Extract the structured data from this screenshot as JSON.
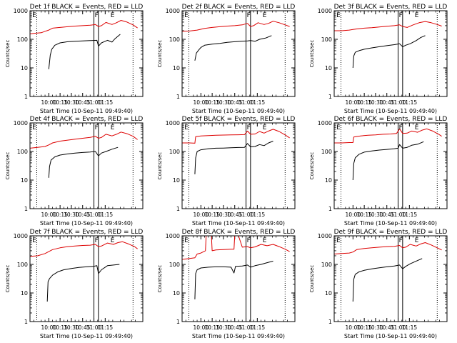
{
  "chart_data": [
    {
      "type": "line",
      "title": "Det 1f BLACK = Events, RED = LLD",
      "xlabel": "Start Time (10-Sep-11 09:49:40)",
      "ylabel": "Counts/sec",
      "x_tick_labels": [
        "10:00",
        "10:15",
        "10:30",
        "10:45",
        "11:00",
        "11:15"
      ],
      "y_tick_labels": [
        "1",
        "10",
        "100",
        "1000"
      ],
      "xlim_minutes_after_start": [
        -25,
        125
      ],
      "ylim": [
        1,
        1000
      ],
      "yscale": "log",
      "markers": [
        "E",
        "F",
        "E"
      ],
      "series": [
        {
          "color": "#000000",
          "x": [
            0,
            2,
            4,
            8,
            15,
            25,
            35,
            45,
            55,
            64,
            66,
            70,
            74,
            78,
            84,
            88,
            95
          ],
          "values": [
            9,
            28,
            45,
            62,
            75,
            82,
            85,
            88,
            90,
            92,
            58,
            75,
            83,
            92,
            80,
            105,
            150
          ]
        },
        {
          "color": "#dd0000",
          "x": [
            -25,
            -20,
            -15,
            -10,
            -5,
            0,
            5,
            15,
            25,
            35,
            45,
            55,
            62,
            66,
            70,
            76,
            84,
            90,
            96,
            104,
            112,
            118
          ],
          "values": [
            155,
            160,
            165,
            170,
            190,
            210,
            245,
            260,
            275,
            290,
            300,
            310,
            330,
            280,
            300,
            390,
            330,
            380,
            460,
            400,
            320,
            250
          ]
        }
      ]
    },
    {
      "type": "line",
      "title": "Det 2f BLACK = Events, RED = LLD",
      "xlabel": "Start Time (10-Sep-11 09:49:40)",
      "ylabel": "Counts/sec",
      "x_tick_labels": [
        "10:00",
        "10:15",
        "10:30",
        "10:45",
        "11:00",
        "11:15"
      ],
      "y_tick_labels": [
        "1",
        "10",
        "100",
        "1000"
      ],
      "xlim_minutes_after_start": [
        -25,
        125
      ],
      "ylim": [
        1,
        1000
      ],
      "yscale": "log",
      "markers": [
        "E",
        "F",
        "E"
      ],
      "series": [
        {
          "color": "#000000",
          "x": [
            -8,
            -6,
            -3,
            0,
            5,
            15,
            25,
            35,
            45,
            55,
            62,
            66,
            72,
            78,
            86,
            94
          ],
          "values": [
            18,
            33,
            42,
            52,
            62,
            68,
            72,
            78,
            82,
            86,
            88,
            90,
            85,
            100,
            110,
            135
          ]
        },
        {
          "color": "#dd0000",
          "x": [
            -25,
            -15,
            -5,
            5,
            15,
            25,
            35,
            45,
            55,
            62,
            66,
            70,
            76,
            84,
            90,
            96,
            104,
            112,
            118
          ],
          "values": [
            190,
            195,
            210,
            240,
            260,
            275,
            290,
            300,
            320,
            360,
            280,
            300,
            380,
            330,
            360,
            430,
            380,
            320,
            280
          ]
        }
      ]
    },
    {
      "type": "line",
      "title": "Det 3f BLACK = Events, RED = LLD",
      "xlabel": "Start Time (10-Sep-11 09:49:40)",
      "ylabel": "Counts/sec",
      "x_tick_labels": [
        "10:00",
        "10:15",
        "10:30",
        "10:45",
        "11:00",
        "11:15"
      ],
      "y_tick_labels": [
        "1",
        "10",
        "100",
        "1000"
      ],
      "xlim_minutes_after_start": [
        -25,
        125
      ],
      "ylim": [
        1,
        1000
      ],
      "yscale": "log",
      "markers": [
        "E",
        "F",
        "E"
      ],
      "series": [
        {
          "color": "#000000",
          "x": [
            0,
            1,
            3,
            8,
            15,
            25,
            35,
            45,
            55,
            62,
            66,
            70,
            76,
            84,
            90,
            96
          ],
          "values": [
            10,
            26,
            35,
            40,
            45,
            50,
            55,
            60,
            65,
            70,
            55,
            62,
            70,
            90,
            115,
            135
          ]
        },
        {
          "color": "#dd0000",
          "x": [
            -25,
            -15,
            -5,
            0,
            5,
            15,
            25,
            35,
            45,
            55,
            62,
            66,
            72,
            80,
            88,
            96,
            104,
            112,
            118
          ],
          "values": [
            200,
            200,
            210,
            220,
            230,
            245,
            255,
            270,
            285,
            300,
            320,
            280,
            260,
            320,
            380,
            420,
            380,
            330,
            290
          ]
        }
      ]
    },
    {
      "type": "line",
      "title": "Det 4f BLACK = Events, RED = LLD",
      "xlabel": "Start Time (10-Sep-11 09:49:40)",
      "ylabel": "Counts/sec",
      "x_tick_labels": [
        "10:00",
        "10:15",
        "10:30",
        "10:45",
        "11:00",
        "11:15"
      ],
      "y_tick_labels": [
        "1",
        "10",
        "100",
        "1000"
      ],
      "xlim_minutes_after_start": [
        -25,
        125
      ],
      "ylim": [
        1,
        1000
      ],
      "yscale": "log",
      "markers": [
        "E",
        "F",
        "E"
      ],
      "series": [
        {
          "color": "#000000",
          "x": [
            0,
            1,
            3,
            8,
            15,
            25,
            35,
            45,
            55,
            62,
            66,
            70,
            76,
            84,
            92
          ],
          "values": [
            12,
            30,
            50,
            65,
            75,
            82,
            88,
            92,
            96,
            100,
            70,
            88,
            100,
            120,
            140
          ]
        },
        {
          "color": "#dd0000",
          "x": [
            -25,
            -15,
            -5,
            0,
            5,
            15,
            25,
            35,
            45,
            55,
            62,
            66,
            70,
            76,
            84,
            90,
            96,
            104,
            112,
            118
          ],
          "values": [
            130,
            140,
            150,
            170,
            200,
            230,
            250,
            270,
            290,
            310,
            340,
            290,
            310,
            400,
            350,
            400,
            480,
            420,
            340,
            260
          ]
        }
      ]
    },
    {
      "type": "line",
      "title": "Det 5f BLACK = Events, RED = LLD",
      "xlabel": "Start Time (10-Sep-11 09:49:40)",
      "ylabel": "Counts/sec",
      "x_tick_labels": [
        "10:00",
        "10:15",
        "10:30",
        "10:45",
        "11:00",
        "11:15"
      ],
      "y_tick_labels": [
        "1",
        "10",
        "100",
        "1000"
      ],
      "xlim_minutes_after_start": [
        -25,
        125
      ],
      "ylim": [
        1,
        1000
      ],
      "yscale": "log",
      "markers": [
        "E",
        "F",
        "E"
      ],
      "series": [
        {
          "color": "#000000",
          "x": [
            -8,
            -7,
            -5,
            0,
            10,
            20,
            30,
            40,
            50,
            58,
            62,
            66,
            72,
            78,
            84,
            90,
            96
          ],
          "values": [
            16,
            60,
            100,
            115,
            125,
            130,
            132,
            135,
            138,
            140,
            190,
            145,
            150,
            175,
            160,
            200,
            230
          ]
        },
        {
          "color": "#dd0000",
          "x": [
            -25,
            -15,
            -8,
            -7,
            0,
            10,
            20,
            30,
            40,
            50,
            58,
            62,
            66,
            72,
            78,
            84,
            90,
            96,
            104,
            112,
            118
          ],
          "values": [
            200,
            200,
            195,
            330,
            350,
            360,
            370,
            375,
            380,
            385,
            390,
            520,
            400,
            410,
            500,
            440,
            520,
            600,
            500,
            380,
            300
          ]
        }
      ]
    },
    {
      "type": "line",
      "title": "Det 6f BLACK = Events, RED = LLD",
      "xlabel": "Start Time (10-Sep-11 09:49:40)",
      "ylabel": "Counts/sec",
      "x_tick_labels": [
        "10:00",
        "10:15",
        "10:30",
        "10:45",
        "11:00",
        "11:15"
      ],
      "y_tick_labels": [
        "1",
        "10",
        "100",
        "1000"
      ],
      "xlim_minutes_after_start": [
        -25,
        125
      ],
      "ylim": [
        1,
        1000
      ],
      "yscale": "log",
      "markers": [
        "E",
        "F",
        "E"
      ],
      "series": [
        {
          "color": "#000000",
          "x": [
            0,
            1,
            3,
            8,
            15,
            25,
            35,
            45,
            55,
            60,
            62,
            66,
            72,
            78,
            86,
            94
          ],
          "values": [
            10,
            38,
            60,
            80,
            95,
            105,
            112,
            118,
            125,
            130,
            175,
            130,
            140,
            165,
            180,
            220
          ]
        },
        {
          "color": "#dd0000",
          "x": [
            -25,
            -15,
            -5,
            0,
            1,
            10,
            20,
            30,
            40,
            50,
            58,
            62,
            66,
            72,
            78,
            86,
            92,
            98,
            106,
            114,
            118
          ],
          "values": [
            200,
            200,
            205,
            205,
            320,
            350,
            370,
            380,
            400,
            410,
            430,
            620,
            430,
            440,
            520,
            470,
            560,
            620,
            520,
            400,
            340
          ]
        }
      ]
    },
    {
      "type": "line",
      "title": "Det 7f BLACK = Events, RED = LLD",
      "xlabel": "Start Time (10-Sep-11 09:49:40)",
      "ylabel": "Counts/sec",
      "x_tick_labels": [
        "10:00",
        "10:15",
        "10:30",
        "10:45",
        "11:00",
        "11:15"
      ],
      "y_tick_labels": [
        "1",
        "10",
        "100",
        "1000"
      ],
      "xlim_minutes_after_start": [
        -25,
        125
      ],
      "ylim": [
        1,
        1000
      ],
      "yscale": "log",
      "markers": [
        "E",
        "F",
        "E"
      ],
      "series": [
        {
          "color": "#000000",
          "x": [
            -2,
            -1,
            1,
            5,
            12,
            20,
            30,
            40,
            50,
            60,
            64,
            66,
            70,
            78,
            86,
            94
          ],
          "values": [
            5,
            25,
            32,
            42,
            55,
            65,
            72,
            78,
            82,
            86,
            90,
            48,
            65,
            90,
            95,
            100
          ]
        },
        {
          "color": "#dd0000",
          "x": [
            -25,
            -15,
            -5,
            0,
            5,
            15,
            25,
            35,
            45,
            55,
            62,
            66,
            70,
            78,
            86,
            92,
            98,
            106,
            114,
            118
          ],
          "values": [
            190,
            200,
            240,
            280,
            330,
            380,
            420,
            440,
            460,
            470,
            500,
            420,
            440,
            560,
            500,
            580,
            620,
            520,
            420,
            350
          ]
        }
      ]
    },
    {
      "type": "line",
      "title": "Det 8f BLACK = Events, RED = LLD",
      "xlabel": "Start Time (10-Sep-11 09:49:40)",
      "ylabel": "Counts/sec",
      "x_tick_labels": [
        "10:00",
        "10:15",
        "10:30",
        "10:45",
        "11:00",
        "11:15"
      ],
      "y_tick_labels": [
        "1",
        "10",
        "100",
        "1000"
      ],
      "xlim_minutes_after_start": [
        -25,
        125
      ],
      "ylim": [
        1,
        1000
      ],
      "yscale": "log",
      "markers": [
        "E",
        "F",
        "E"
      ],
      "series": [
        {
          "color": "#000000",
          "x": [
            -8,
            -7,
            -5,
            0,
            10,
            20,
            30,
            40,
            44,
            46,
            55,
            62,
            66,
            72,
            80,
            88,
            96
          ],
          "values": [
            6,
            48,
            65,
            75,
            80,
            82,
            82,
            80,
            50,
            85,
            88,
            95,
            80,
            90,
            100,
            115,
            130
          ]
        },
        {
          "color": "#dd0000",
          "x": [
            -25,
            -15,
            -8,
            -5,
            0,
            6,
            7,
            14,
            15,
            20,
            30,
            40,
            44,
            45,
            50,
            55,
            62,
            66,
            72,
            80,
            88,
            96,
            104,
            112,
            118
          ],
          "values": [
            150,
            160,
            170,
            230,
            250,
            300,
            1000,
            1000,
            300,
            320,
            330,
            340,
            340,
            1000,
            1000,
            400,
            420,
            380,
            410,
            500,
            450,
            500,
            420,
            340,
            280
          ]
        }
      ]
    },
    {
      "type": "line",
      "title": "Det 9f BLACK = Events, RED = LLD",
      "xlabel": "Start Time (10-Sep-11 09:49:40)",
      "ylabel": "Counts/sec",
      "x_tick_labels": [
        "10:00",
        "10:15",
        "10:30",
        "10:45",
        "11:00",
        "11:15"
      ],
      "y_tick_labels": [
        "1",
        "10",
        "100",
        "1000"
      ],
      "xlim_minutes_after_start": [
        -25,
        125
      ],
      "ylim": [
        1,
        1000
      ],
      "yscale": "log",
      "markers": [
        "E",
        "F",
        "E"
      ],
      "series": [
        {
          "color": "#000000",
          "x": [
            0,
            1,
            3,
            8,
            15,
            25,
            35,
            45,
            55,
            62,
            66,
            70,
            76,
            84,
            92
          ],
          "values": [
            5,
            30,
            45,
            55,
            62,
            70,
            76,
            82,
            88,
            95,
            70,
            85,
            105,
            130,
            160
          ]
        },
        {
          "color": "#dd0000",
          "x": [
            -25,
            -15,
            -5,
            0,
            5,
            15,
            25,
            35,
            45,
            55,
            62,
            66,
            70,
            76,
            84,
            90,
            96,
            104,
            112,
            118
          ],
          "values": [
            230,
            240,
            250,
            270,
            330,
            360,
            380,
            400,
            420,
            430,
            460,
            380,
            400,
            500,
            440,
            520,
            580,
            480,
            380,
            320
          ]
        }
      ]
    }
  ]
}
